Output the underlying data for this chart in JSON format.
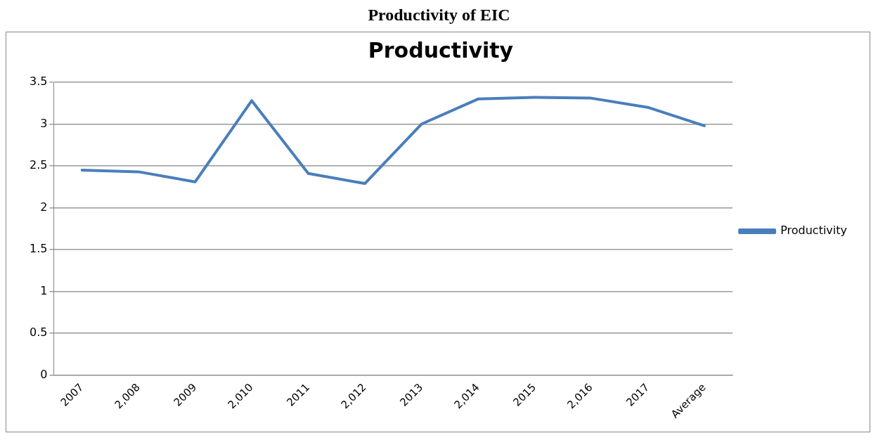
{
  "chart_data": {
    "type": "line",
    "title": "Productivity of EIC",
    "subtitle": "Productivity",
    "categories": [
      "2007",
      "2,008",
      "2009",
      "2,010",
      "2011",
      "2,012",
      "2013",
      "2,014",
      "2015",
      "2,016",
      "2017",
      "Average"
    ],
    "series": [
      {
        "name": "Productivity",
        "color": "#4a7ebb",
        "values": [
          2.45,
          2.43,
          2.31,
          3.28,
          2.41,
          2.29,
          3.0,
          3.3,
          3.32,
          3.31,
          3.2,
          2.98
        ]
      }
    ],
    "ylim": [
      0,
      3.5
    ],
    "yticks": [
      0,
      0.5,
      1,
      1.5,
      2,
      2.5,
      3,
      3.5
    ],
    "grid": "y",
    "legend": "right",
    "marker": "none",
    "line_style": "solid"
  }
}
